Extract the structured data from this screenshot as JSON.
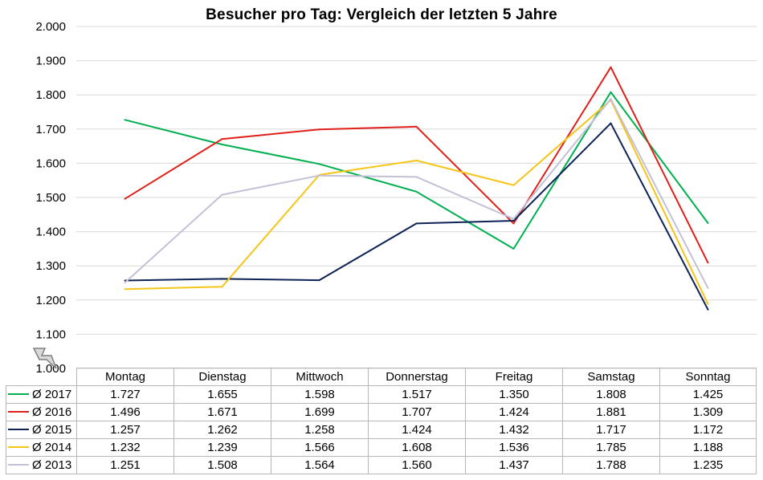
{
  "chart_data": {
    "type": "line",
    "title": "Besucher pro Tag: Vergleich  der letzten 5 Jahre",
    "categories": [
      "Montag",
      "Dienstag",
      "Mittwoch",
      "Donnerstag",
      "Freitag",
      "Samstag",
      "Sonntag"
    ],
    "ylim": [
      1000,
      2000
    ],
    "yticks": [
      "1.000",
      "1.100",
      "1.200",
      "1.300",
      "1.400",
      "1.500",
      "1.600",
      "1.700",
      "1.800",
      "1.900",
      "2.000"
    ],
    "grid": true,
    "legend": "data table",
    "series": [
      {
        "name": "Ø 2017",
        "color": "#00b050",
        "values": [
          1727,
          1655,
          1598,
          1517,
          1350,
          1808,
          1425
        ],
        "labels": [
          "1.727",
          "1.655",
          "1.598",
          "1.517",
          "1.350",
          "1.808",
          "1.425"
        ]
      },
      {
        "name": "Ø 2016",
        "color": "#e0201a",
        "values": [
          1496,
          1671,
          1699,
          1707,
          1424,
          1881,
          1309
        ],
        "labels": [
          "1.496",
          "1.671",
          "1.699",
          "1.707",
          "1.424",
          "1.881",
          "1.309"
        ]
      },
      {
        "name": "Ø 2015",
        "color": "#0d2356",
        "values": [
          1257,
          1262,
          1258,
          1424,
          1432,
          1717,
          1172
        ],
        "labels": [
          "1.257",
          "1.262",
          "1.258",
          "1.424",
          "1.432",
          "1.717",
          "1.172"
        ]
      },
      {
        "name": "Ø 2014",
        "color": "#f5c518",
        "values": [
          1232,
          1239,
          1566,
          1608,
          1536,
          1785,
          1188
        ],
        "labels": [
          "1.232",
          "1.239",
          "1.566",
          "1.608",
          "1.536",
          "1.785",
          "1.188"
        ]
      },
      {
        "name": "Ø 2013",
        "color": "#c4c0d6",
        "values": [
          1251,
          1508,
          1564,
          1560,
          1437,
          1788,
          1235
        ],
        "labels": [
          "1.251",
          "1.508",
          "1.564",
          "1.560",
          "1.437",
          "1.788",
          "1.235"
        ]
      }
    ]
  },
  "icons": {
    "corner": "lightning-icon"
  }
}
